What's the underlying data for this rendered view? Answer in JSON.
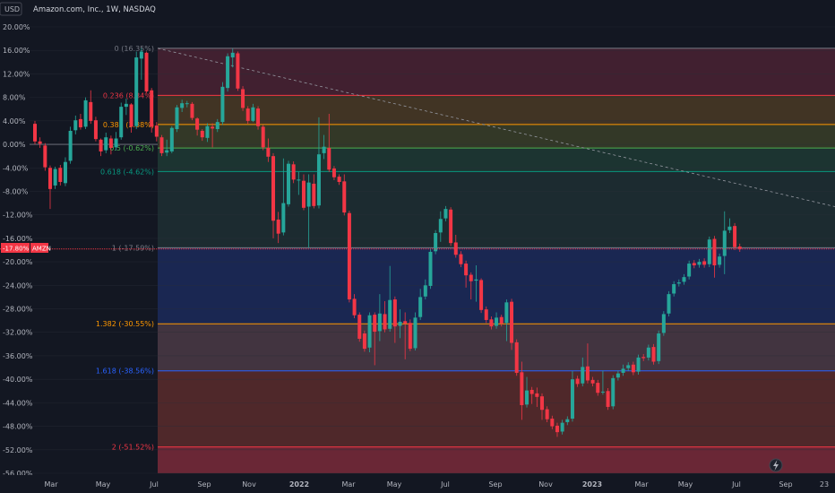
{
  "header": {
    "currency": "USD",
    "title": "Amazon.com, Inc., 1W, NASDAQ",
    "price_tag": "-17.80%",
    "symbol_tag": "AMZN"
  },
  "colors": {
    "background": "#131722",
    "up": "#26a69a",
    "down": "#f23645",
    "price_line": "#f23645",
    "axis_text": "#b2b5be"
  },
  "chart_data": {
    "type": "candlestick",
    "title": "Amazon.com, Inc., 1W, NASDAQ",
    "ylabel": "",
    "xlabel": "",
    "y_unit": "%",
    "ylim": [
      -56,
      20
    ],
    "y_ticks": [
      "20.00%",
      "16.00%",
      "12.00%",
      "8.00%",
      "4.00%",
      "0.00%",
      "-4.00%",
      "-8.00%",
      "-12.00%",
      "-16.00%",
      "-20.00%",
      "-24.00%",
      "-28.00%",
      "-32.00%",
      "-36.00%",
      "-40.00%",
      "-44.00%",
      "-48.00%",
      "-52.00%",
      "-56.00%"
    ],
    "x_ticks": [
      "Mar",
      "May",
      "Jul",
      "Sep",
      "Nov",
      "2022",
      "Mar",
      "May",
      "Jul",
      "Sep",
      "Nov",
      "2023",
      "Mar",
      "May",
      "Jul",
      "Sep",
      "23"
    ],
    "last_value": -17.8,
    "fib_levels": [
      {
        "label": "0 (16.35%)",
        "value": 16.35,
        "color": "#787b86",
        "fill": "#4a2232"
      },
      {
        "label": "0.236 (8.34%)",
        "value": 8.34,
        "color": "#f23645",
        "fill": "#4a3a24"
      },
      {
        "label": "0.382 (3.38%)",
        "value": 3.38,
        "color": "#ff9800",
        "fill": "#3a3e28"
      },
      {
        "label": "0.5 (-0.62%)",
        "value": -0.62,
        "color": "#4caf50",
        "fill": "#1e3a34"
      },
      {
        "label": "0.618 (-4.62%)",
        "value": -4.62,
        "color": "#089981",
        "fill": "#1f2f33"
      },
      {
        "label": "1 (-17.59%)",
        "value": -17.59,
        "color": "#787b86",
        "fill": "#1c2a5a"
      },
      {
        "label": "1.382 (-30.55%)",
        "value": -30.55,
        "color": "#ff9800",
        "fill": "#4b3a45"
      },
      {
        "label": "1.618 (-38.56%)",
        "value": -38.56,
        "color": "#2962ff",
        "fill": "#5a2c2c"
      },
      {
        "label": "2 (-51.52%)",
        "value": -51.52,
        "color": "#f23645",
        "fill": "#7a2a3a"
      }
    ],
    "trend_line": {
      "from": [
        0,
        16.35
      ],
      "to": [
        1,
        -10.6
      ]
    },
    "series": [
      {
        "o": 3.5,
        "c": 0.5,
        "h": 4.0,
        "l": 0.0
      },
      {
        "o": 0.5,
        "c": 0.1,
        "h": 1.2,
        "l": -0.6
      },
      {
        "o": -0.2,
        "c": -3.9,
        "h": 0.2,
        "l": -4.5
      },
      {
        "o": -4.0,
        "c": -7.6,
        "h": -3.6,
        "l": -11.0
      },
      {
        "o": -7.0,
        "c": -4.2,
        "h": -3.8,
        "l": -7.6
      },
      {
        "o": -4.0,
        "c": -6.4,
        "h": -3.5,
        "l": -7.0
      },
      {
        "o": -6.6,
        "c": -3.0,
        "h": -2.2,
        "l": -7.1
      },
      {
        "o": -2.8,
        "c": 2.3,
        "h": 3.0,
        "l": -3.3
      },
      {
        "o": 2.4,
        "c": 4.1,
        "h": 4.9,
        "l": 1.7
      },
      {
        "o": 4.3,
        "c": 2.9,
        "h": 5.2,
        "l": 2.5
      },
      {
        "o": 3.0,
        "c": 7.5,
        "h": 8.0,
        "l": 2.6
      },
      {
        "o": 7.2,
        "c": 4.0,
        "h": 9.2,
        "l": 3.5
      },
      {
        "o": 4.1,
        "c": 0.9,
        "h": 4.7,
        "l": 0.5
      },
      {
        "o": 0.8,
        "c": -1.2,
        "h": 1.0,
        "l": -2.0
      },
      {
        "o": -1.0,
        "c": 1.2,
        "h": 2.0,
        "l": -1.5
      },
      {
        "o": 1.0,
        "c": -0.6,
        "h": 1.5,
        "l": -1.7
      },
      {
        "o": -0.5,
        "c": 1.0,
        "h": 2.1,
        "l": -1.0
      },
      {
        "o": 1.2,
        "c": 6.4,
        "h": 7.1,
        "l": 0.8
      },
      {
        "o": 6.4,
        "c": 6.9,
        "h": 7.8,
        "l": 5.0
      },
      {
        "o": 6.8,
        "c": 3.0,
        "h": 7.0,
        "l": 2.0
      },
      {
        "o": 3.1,
        "c": 14.8,
        "h": 15.8,
        "l": 2.6
      },
      {
        "o": 14.6,
        "c": 15.8,
        "h": 16.4,
        "l": 11.0
      },
      {
        "o": 15.6,
        "c": 9.0,
        "h": 15.8,
        "l": 8.8
      },
      {
        "o": 9.2,
        "c": 3.0,
        "h": 9.6,
        "l": 2.0
      },
      {
        "o": 3.2,
        "c": 1.3,
        "h": 3.8,
        "l": 0.5
      },
      {
        "o": 1.2,
        "c": -1.5,
        "h": 1.6,
        "l": -2.0
      },
      {
        "o": -1.4,
        "c": -1.0,
        "h": 0.8,
        "l": -2.0
      },
      {
        "o": -1.2,
        "c": 2.8,
        "h": 3.1,
        "l": -1.5
      },
      {
        "o": 2.6,
        "c": 6.3,
        "h": 6.7,
        "l": 2.1
      },
      {
        "o": 6.2,
        "c": 7.0,
        "h": 7.6,
        "l": 5.5
      },
      {
        "o": 7.0,
        "c": 7.0,
        "h": 7.4,
        "l": 6.3
      },
      {
        "o": 6.9,
        "c": 4.5,
        "h": 7.2,
        "l": 4.1
      },
      {
        "o": 4.4,
        "c": 2.5,
        "h": 4.6,
        "l": 1.5
      },
      {
        "o": 2.3,
        "c": 1.2,
        "h": 2.6,
        "l": 0.6
      },
      {
        "o": 1.1,
        "c": 3.1,
        "h": 3.6,
        "l": 0.4
      },
      {
        "o": 3.0,
        "c": 2.7,
        "h": 3.6,
        "l": -0.5
      },
      {
        "o": 2.6,
        "c": 3.8,
        "h": 4.3,
        "l": 2.1
      },
      {
        "o": 3.8,
        "c": 9.8,
        "h": 10.6,
        "l": 3.3
      },
      {
        "o": 9.6,
        "c": 15.0,
        "h": 15.5,
        "l": 9.0
      },
      {
        "o": 14.8,
        "c": 15.6,
        "h": 16.3,
        "l": 13.1
      },
      {
        "o": 15.5,
        "c": 9.5,
        "h": 15.8,
        "l": 9.1
      },
      {
        "o": 9.4,
        "c": 6.2,
        "h": 9.9,
        "l": 5.7
      },
      {
        "o": 6.1,
        "c": 4.0,
        "h": 6.5,
        "l": 3.5
      },
      {
        "o": 4.0,
        "c": 6.3,
        "h": 6.9,
        "l": 3.8
      },
      {
        "o": 6.1,
        "c": 3.1,
        "h": 6.5,
        "l": 2.5
      },
      {
        "o": 3.0,
        "c": -0.5,
        "h": 3.3,
        "l": -1.0
      },
      {
        "o": -0.6,
        "c": -2.1,
        "h": 1.0,
        "l": -3.0
      },
      {
        "o": -2.0,
        "c": -13.0,
        "h": -1.5,
        "l": -16.0
      },
      {
        "o": -12.8,
        "c": -15.2,
        "h": -11.5,
        "l": -16.8
      },
      {
        "o": -15.0,
        "c": -10.0,
        "h": -2.4,
        "l": -15.5
      },
      {
        "o": -10.2,
        "c": -3.3,
        "h": -2.8,
        "l": -10.6
      },
      {
        "o": -3.4,
        "c": -6.0,
        "h": -2.9,
        "l": -6.6
      },
      {
        "o": -6.1,
        "c": -6.0,
        "h": -4.7,
        "l": -8.6
      },
      {
        "o": -6.2,
        "c": -10.8,
        "h": -5.1,
        "l": -11.2
      },
      {
        "o": -10.6,
        "c": -6.5,
        "h": -5.1,
        "l": -17.6
      },
      {
        "o": -6.7,
        "c": -10.5,
        "h": -5.1,
        "l": -10.9
      },
      {
        "o": -10.4,
        "c": -1.7,
        "h": 4.6,
        "l": -10.9
      },
      {
        "o": -1.5,
        "c": -0.4,
        "h": 1.6,
        "l": -2.5
      },
      {
        "o": -0.6,
        "c": -4.3,
        "h": 5.2,
        "l": -4.7
      },
      {
        "o": -4.1,
        "c": -5.6,
        "h": -3.7,
        "l": -6.1
      },
      {
        "o": -5.5,
        "c": -6.4,
        "h": -5.1,
        "l": -6.9
      },
      {
        "o": -6.3,
        "c": -11.6,
        "h": -5.1,
        "l": -12.1
      },
      {
        "o": -11.7,
        "c": -26.4,
        "h": -11.3,
        "l": -26.9
      },
      {
        "o": -26.3,
        "c": -29.1,
        "h": -25.5,
        "l": -29.6
      },
      {
        "o": -29.0,
        "c": -33.1,
        "h": -28.6,
        "l": -33.6
      },
      {
        "o": -32.2,
        "c": -34.8,
        "h": -31.7,
        "l": -35.3
      },
      {
        "o": -34.6,
        "c": -29.1,
        "h": -28.6,
        "l": -35.4
      },
      {
        "o": -29.0,
        "c": -31.9,
        "h": -28.6,
        "l": -37.6
      },
      {
        "o": -31.8,
        "c": -28.8,
        "h": -25.5,
        "l": -33.5
      },
      {
        "o": -28.9,
        "c": -31.5,
        "h": -26.7,
        "l": -32.0
      },
      {
        "o": -31.4,
        "c": -26.5,
        "h": -20.7,
        "l": -31.9
      },
      {
        "o": -26.4,
        "c": -31.0,
        "h": -25.9,
        "l": -33.8
      },
      {
        "o": -30.9,
        "c": -30.2,
        "h": -28.1,
        "l": -33.0
      },
      {
        "o": -30.1,
        "c": -30.5,
        "h": -28.6,
        "l": -36.6
      },
      {
        "o": -30.4,
        "c": -34.8,
        "h": -29.8,
        "l": -35.2
      },
      {
        "o": -34.7,
        "c": -29.5,
        "h": -28.6,
        "l": -35.1
      },
      {
        "o": -29.4,
        "c": -26.0,
        "h": -24.6,
        "l": -29.9
      },
      {
        "o": -25.9,
        "c": -24.0,
        "h": -23.0,
        "l": -26.4
      },
      {
        "o": -24.1,
        "c": -18.3,
        "h": -17.8,
        "l": -24.6
      },
      {
        "o": -18.2,
        "c": -15.1,
        "h": -14.6,
        "l": -18.7
      },
      {
        "o": -15.0,
        "c": -12.7,
        "h": -11.4,
        "l": -16.6
      },
      {
        "o": -12.6,
        "c": -11.0,
        "h": -10.5,
        "l": -13.1
      },
      {
        "o": -11.1,
        "c": -16.8,
        "h": -10.7,
        "l": -17.3
      },
      {
        "o": -16.7,
        "c": -18.8,
        "h": -15.4,
        "l": -19.3
      },
      {
        "o": -18.7,
        "c": -20.4,
        "h": -18.2,
        "l": -20.9
      },
      {
        "o": -20.3,
        "c": -22.3,
        "h": -19.8,
        "l": -24.4
      },
      {
        "o": -22.2,
        "c": -23.3,
        "h": -21.8,
        "l": -26.4
      },
      {
        "o": -23.2,
        "c": -23.0,
        "h": -20.6,
        "l": -26.8
      },
      {
        "o": -23.1,
        "c": -28.2,
        "h": -22.8,
        "l": -28.7
      },
      {
        "o": -28.1,
        "c": -29.9,
        "h": -27.6,
        "l": -30.4
      },
      {
        "o": -29.8,
        "c": -31.0,
        "h": -29.3,
        "l": -31.5
      },
      {
        "o": -30.9,
        "c": -29.5,
        "h": -28.6,
        "l": -31.4
      },
      {
        "o": -29.4,
        "c": -30.5,
        "h": -29.0,
        "l": -31.0
      },
      {
        "o": -30.4,
        "c": -26.9,
        "h": -26.4,
        "l": -33.5
      },
      {
        "o": -26.8,
        "c": -33.8,
        "h": -26.3,
        "l": -35.0
      },
      {
        "o": -33.7,
        "c": -38.9,
        "h": -33.2,
        "l": -39.4
      },
      {
        "o": -38.8,
        "c": -44.4,
        "h": -37.0,
        "l": -46.9
      },
      {
        "o": -44.3,
        "c": -41.9,
        "h": -39.6,
        "l": -44.8
      },
      {
        "o": -41.8,
        "c": -42.5,
        "h": -41.3,
        "l": -44.2
      },
      {
        "o": -42.4,
        "c": -43.0,
        "h": -41.4,
        "l": -44.7
      },
      {
        "o": -42.9,
        "c": -45.2,
        "h": -42.4,
        "l": -46.9
      },
      {
        "o": -45.1,
        "c": -46.8,
        "h": -44.6,
        "l": -47.3
      },
      {
        "o": -46.7,
        "c": -48.0,
        "h": -46.2,
        "l": -48.5
      },
      {
        "o": -47.9,
        "c": -49.0,
        "h": -47.4,
        "l": -49.8
      },
      {
        "o": -48.9,
        "c": -47.4,
        "h": -46.9,
        "l": -49.4
      },
      {
        "o": -47.3,
        "c": -46.8,
        "h": -46.3,
        "l": -47.8
      },
      {
        "o": -46.7,
        "c": -40.0,
        "h": -38.6,
        "l": -47.2
      },
      {
        "o": -39.9,
        "c": -40.8,
        "h": -39.4,
        "l": -41.3
      },
      {
        "o": -40.7,
        "c": -37.9,
        "h": -36.3,
        "l": -41.2
      },
      {
        "o": -37.8,
        "c": -40.2,
        "h": -33.9,
        "l": -40.7
      },
      {
        "o": -40.1,
        "c": -40.7,
        "h": -39.6,
        "l": -41.2
      },
      {
        "o": -40.6,
        "c": -42.3,
        "h": -40.1,
        "l": -42.8
      },
      {
        "o": -42.2,
        "c": -42.1,
        "h": -38.5,
        "l": -42.6
      },
      {
        "o": -42.0,
        "c": -44.7,
        "h": -41.5,
        "l": -45.2
      },
      {
        "o": -44.6,
        "c": -39.8,
        "h": -39.3,
        "l": -45.1
      },
      {
        "o": -39.7,
        "c": -39.0,
        "h": -38.5,
        "l": -40.2
      },
      {
        "o": -38.9,
        "c": -38.2,
        "h": -37.5,
        "l": -39.4
      },
      {
        "o": -38.1,
        "c": -37.6,
        "h": -37.1,
        "l": -38.6
      },
      {
        "o": -37.5,
        "c": -38.8,
        "h": -37.0,
        "l": -39.3
      },
      {
        "o": -38.7,
        "c": -36.3,
        "h": -35.8,
        "l": -39.2
      },
      {
        "o": -36.2,
        "c": -36.4,
        "h": -35.7,
        "l": -36.9
      },
      {
        "o": -36.3,
        "c": -34.6,
        "h": -34.1,
        "l": -36.8
      },
      {
        "o": -34.5,
        "c": -37.0,
        "h": -34.0,
        "l": -37.5
      },
      {
        "o": -36.9,
        "c": -32.2,
        "h": -31.7,
        "l": -37.4
      },
      {
        "o": -32.1,
        "c": -28.9,
        "h": -28.4,
        "l": -32.6
      },
      {
        "o": -28.8,
        "c": -25.5,
        "h": -25.0,
        "l": -29.3
      },
      {
        "o": -25.4,
        "c": -23.8,
        "h": -23.3,
        "l": -25.9
      },
      {
        "o": -23.7,
        "c": -23.5,
        "h": -23.0,
        "l": -24.2
      },
      {
        "o": -23.4,
        "c": -22.6,
        "h": -22.1,
        "l": -23.9
      },
      {
        "o": -22.5,
        "c": -20.3,
        "h": -19.8,
        "l": -23.0
      },
      {
        "o": -20.2,
        "c": -20.6,
        "h": -19.7,
        "l": -21.1
      },
      {
        "o": -20.5,
        "c": -20.0,
        "h": -19.5,
        "l": -21.0
      },
      {
        "o": -19.9,
        "c": -20.5,
        "h": -19.4,
        "l": -21.0
      },
      {
        "o": -20.4,
        "c": -16.2,
        "h": -15.7,
        "l": -20.9
      },
      {
        "o": -16.1,
        "c": -20.6,
        "h": -15.6,
        "l": -22.7
      },
      {
        "o": -20.5,
        "c": -19.1,
        "h": -18.6,
        "l": -21.0
      },
      {
        "o": -19.0,
        "c": -14.7,
        "h": -11.4,
        "l": -22.1
      },
      {
        "o": -14.6,
        "c": -14.0,
        "h": -12.6,
        "l": -15.1
      },
      {
        "o": -13.9,
        "c": -17.5,
        "h": -13.4,
        "l": -18.0
      },
      {
        "o": -17.4,
        "c": -17.8,
        "h": -16.9,
        "l": -18.3
      }
    ]
  }
}
